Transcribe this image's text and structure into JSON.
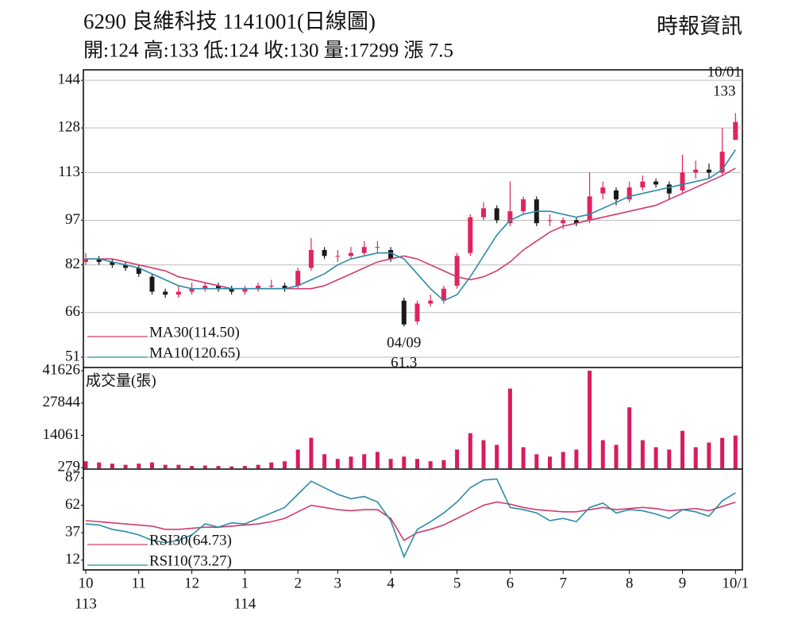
{
  "header": {
    "title": "6290  良維科技 1141001(日線圖)",
    "subtitle": "開:124 高:133 低:124 收:130 量:17299 漲 7.5",
    "source": "時報資訊"
  },
  "chart_data": [
    {
      "type": "candlestick",
      "categories": [
        "10",
        null,
        null,
        null,
        "11",
        null,
        null,
        null,
        "12",
        null,
        null,
        null,
        "1",
        null,
        null,
        null,
        "2",
        null,
        null,
        "3",
        null,
        null,
        null,
        "4",
        null,
        null,
        null,
        null,
        "5",
        null,
        null,
        null,
        "6",
        null,
        null,
        null,
        "7",
        null,
        null,
        null,
        null,
        "8",
        null,
        null,
        null,
        "9",
        null,
        null,
        null,
        "10/1"
      ],
      "year_labels": [
        "113",
        null,
        null,
        null,
        null,
        null,
        null,
        null,
        null,
        null,
        null,
        null,
        "114",
        null,
        null,
        null,
        null,
        null,
        null,
        null,
        null,
        null,
        null,
        null,
        null,
        null,
        null,
        null,
        null,
        null,
        null,
        null,
        null,
        null,
        null,
        null,
        null,
        null,
        null,
        null,
        null,
        null,
        null,
        null,
        null,
        null,
        null,
        null,
        null,
        null
      ],
      "open": [
        83,
        84,
        83,
        82,
        81,
        78,
        73,
        72,
        73,
        74,
        75,
        74,
        73,
        74,
        75,
        75,
        75,
        81,
        87,
        85,
        85,
        86,
        88,
        87,
        70,
        63,
        69,
        70,
        75,
        86,
        98,
        101,
        96,
        100,
        104,
        97,
        96,
        97,
        97,
        106,
        107,
        104,
        108,
        110,
        109,
        107,
        113,
        114,
        113,
        124
      ],
      "high": [
        86,
        85,
        84,
        83,
        82,
        79,
        74,
        75,
        76,
        76,
        76,
        75,
        75,
        76,
        77,
        76,
        81,
        91,
        88,
        87,
        88,
        90,
        90,
        88,
        71,
        70,
        72,
        75,
        86,
        99,
        103,
        102,
        110,
        105,
        105,
        99,
        98,
        98,
        113,
        110,
        108,
        110,
        112,
        111,
        110,
        119,
        117,
        116,
        128,
        133
      ],
      "low": [
        82,
        82,
        81,
        80,
        78,
        72,
        71,
        71,
        72,
        73,
        73,
        72,
        72,
        73,
        74,
        73,
        74,
        80,
        84,
        83,
        84,
        85,
        86,
        83,
        61.3,
        62,
        68,
        69,
        74,
        85,
        97,
        96,
        95,
        99,
        95,
        95,
        94,
        95,
        96,
        104,
        102,
        103,
        107,
        108,
        104,
        106,
        111,
        111,
        112,
        124
      ],
      "close": [
        84,
        83,
        82,
        81,
        79,
        73,
        72,
        73,
        74,
        75,
        74,
        73,
        74,
        75,
        75,
        74,
        80,
        87,
        85,
        85,
        86,
        88,
        88,
        84,
        62,
        69,
        70,
        74,
        85,
        98,
        101,
        97,
        100,
        104,
        96,
        97,
        97,
        96,
        105,
        108,
        104,
        108,
        110,
        109,
        106,
        113,
        114,
        113,
        120,
        130
      ],
      "up_color": "#e0245e",
      "down_color": "#1a1a1a",
      "series": [
        {
          "name": "MA30(114.50)",
          "color": "#d23a6e",
          "values": [
            84,
            84,
            84,
            83,
            82,
            81,
            80,
            78,
            77,
            76,
            75,
            74,
            74,
            74,
            74,
            74,
            74,
            74,
            75,
            77,
            79,
            81,
            83,
            84,
            85,
            84,
            82,
            80,
            78,
            77,
            78,
            80,
            83,
            87,
            90,
            93,
            95,
            96,
            97,
            98,
            99,
            100,
            101,
            102,
            104,
            106,
            108,
            110,
            112,
            114.5
          ]
        },
        {
          "name": "MA10(120.65)",
          "color": "#2b8ca6",
          "values": [
            84,
            84,
            83,
            82,
            81,
            79,
            77,
            75,
            74,
            74,
            74,
            74,
            74,
            74,
            74,
            74,
            75,
            77,
            79,
            82,
            84,
            85,
            86,
            86,
            84,
            79,
            74,
            70,
            72,
            78,
            85,
            92,
            97,
            99,
            100,
            100,
            99,
            98,
            99,
            101,
            103,
            105,
            106,
            107,
            108,
            109,
            110,
            111,
            114,
            120.65
          ]
        }
      ],
      "annotations": [
        {
          "date": "10/01",
          "value": 133
        },
        {
          "date": "04/09",
          "value": 61.3
        }
      ],
      "ylim": [
        47.8,
        147.5
      ],
      "yticks": [
        51,
        66,
        82,
        97,
        113,
        128,
        144
      ],
      "grid": true
    },
    {
      "type": "bar",
      "label": "成交量(張)",
      "color": "#d81b60",
      "values": [
        3000,
        2500,
        2000,
        1500,
        2000,
        2500,
        1500,
        1500,
        1000,
        1200,
        1000,
        800,
        1000,
        1500,
        2500,
        3000,
        8000,
        13000,
        6000,
        4000,
        5000,
        6000,
        7000,
        4000,
        5000,
        4000,
        3000,
        3500,
        8000,
        15000,
        12000,
        10000,
        34000,
        9000,
        6000,
        5000,
        7000,
        8000,
        41626,
        12000,
        10000,
        26000,
        12000,
        9000,
        8000,
        16000,
        9000,
        11000,
        13000,
        14000
      ],
      "ylim": [
        0,
        43000
      ],
      "yticks": [
        279,
        14061,
        27844,
        41626
      ]
    },
    {
      "type": "line",
      "series": [
        {
          "name": "RSI30(64.73)",
          "color": "#d23a6e",
          "values": [
            48,
            47,
            46,
            45,
            44,
            43,
            40,
            40,
            41,
            42,
            42,
            43,
            44,
            45,
            47,
            50,
            56,
            62,
            60,
            58,
            57,
            58,
            58,
            50,
            30,
            37,
            40,
            44,
            50,
            56,
            62,
            65,
            63,
            60,
            58,
            57,
            56,
            56,
            58,
            60,
            58,
            59,
            60,
            59,
            57,
            58,
            59,
            57,
            61,
            64.73
          ]
        },
        {
          "name": "RSI10(73.27)",
          "color": "#2b8ca6",
          "values": [
            45,
            44,
            40,
            38,
            35,
            30,
            28,
            30,
            35,
            45,
            42,
            46,
            45,
            50,
            55,
            60,
            72,
            84,
            78,
            72,
            68,
            70,
            65,
            48,
            15,
            40,
            47,
            55,
            65,
            78,
            85,
            86,
            60,
            58,
            55,
            48,
            50,
            47,
            60,
            64,
            55,
            58,
            57,
            54,
            50,
            58,
            56,
            52,
            66,
            73.27
          ]
        }
      ],
      "ylim": [
        3,
        95
      ],
      "yticks": [
        12,
        37,
        62,
        87
      ]
    }
  ]
}
